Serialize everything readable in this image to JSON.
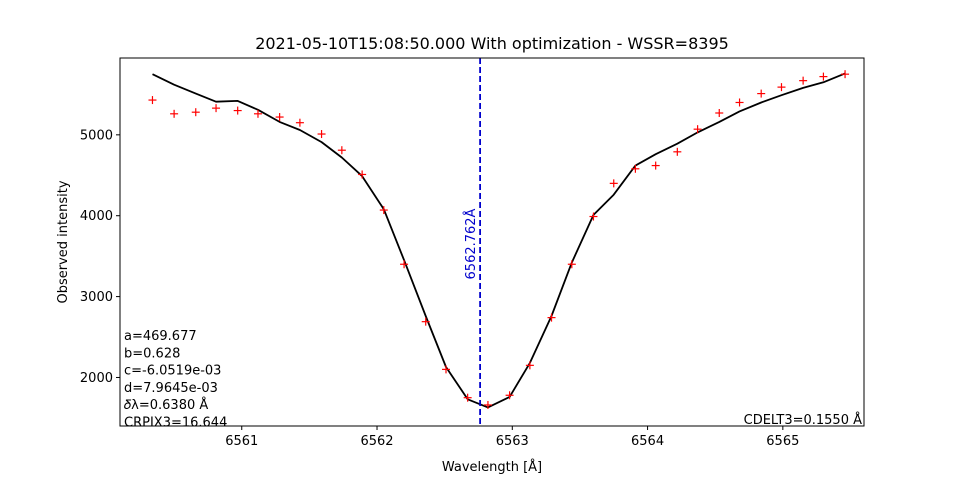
{
  "chart_data": {
    "type": "line",
    "title": "2021-05-10T15:08:50.000 With optimization - WSSR=8395",
    "xlabel": "Wavelength [Å]",
    "ylabel": "Observed intensity",
    "xlim": [
      6560.1,
      6565.6
    ],
    "ylim": [
      1400,
      5950
    ],
    "x_ticks": [
      6561,
      6562,
      6563,
      6564,
      6565
    ],
    "y_ticks": [
      2000,
      3000,
      4000,
      5000
    ],
    "grid": false,
    "series": [
      {
        "style": "line",
        "color": "#000000",
        "x": [
          6560.34,
          6560.5,
          6560.66,
          6560.81,
          6560.97,
          6561.12,
          6561.28,
          6561.43,
          6561.59,
          6561.74,
          6561.89,
          6562.05,
          6562.2,
          6562.36,
          6562.51,
          6562.67,
          6562.82,
          6562.98,
          6563.13,
          6563.29,
          6563.44,
          6563.6,
          6563.75,
          6563.91,
          6564.06,
          6564.22,
          6564.37,
          6564.53,
          6564.68,
          6564.84,
          6564.99,
          6565.15,
          6565.3,
          6565.46
        ],
        "y": [
          5750,
          5620,
          5510,
          5410,
          5420,
          5310,
          5160,
          5060,
          4910,
          4720,
          4490,
          4080,
          3450,
          2760,
          2130,
          1730,
          1630,
          1760,
          2180,
          2760,
          3420,
          4010,
          4260,
          4620,
          4760,
          4890,
          5030,
          5160,
          5290,
          5400,
          5490,
          5580,
          5650,
          5760
        ]
      },
      {
        "style": "markers",
        "marker": "+",
        "color": "#ff0000",
        "x": [
          6560.34,
          6560.5,
          6560.66,
          6560.81,
          6560.97,
          6561.12,
          6561.28,
          6561.43,
          6561.59,
          6561.74,
          6561.89,
          6562.05,
          6562.2,
          6562.36,
          6562.51,
          6562.67,
          6562.82,
          6562.98,
          6563.13,
          6563.29,
          6563.44,
          6563.6,
          6563.75,
          6563.91,
          6564.06,
          6564.22,
          6564.37,
          6564.53,
          6564.68,
          6564.84,
          6564.99,
          6565.15,
          6565.3,
          6565.46
        ],
        "y": [
          5430,
          5260,
          5280,
          5330,
          5300,
          5260,
          5220,
          5150,
          5010,
          4810,
          4510,
          4070,
          3400,
          2690,
          2100,
          1750,
          1660,
          1780,
          2150,
          2740,
          3400,
          3990,
          4400,
          4580,
          4620,
          4790,
          5070,
          5270,
          5400,
          5510,
          5590,
          5670,
          5720,
          5750
        ]
      }
    ],
    "vline": {
      "x": 6562.762,
      "color": "#0000cc",
      "label": "6562.762Å"
    },
    "annotations_left": [
      "a=469.677",
      "b=0.628",
      "c=-6.0519e-03",
      "d=7.9645e-03",
      "𝛿λ=0.6380 Å",
      "CRPIX3=16.644"
    ],
    "annotation_right": "CDELT3=0.1550 Å"
  }
}
